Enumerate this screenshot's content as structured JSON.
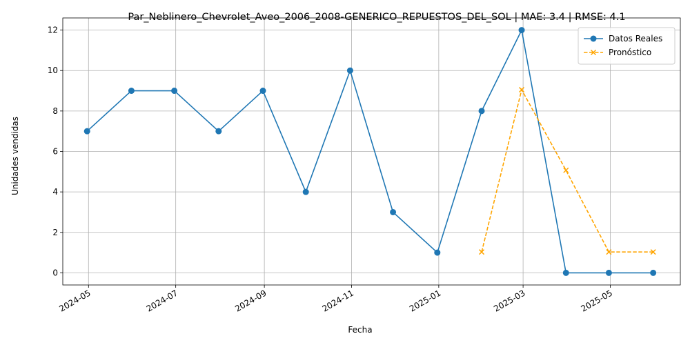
{
  "chart_data": {
    "type": "line",
    "title": "Par_Neblinero_Chevrolet_Aveo_2006_2008-GENERICO_REPUESTOS_DEL_SOL | MAE: 3.4 | RMSE: 4.1",
    "xlabel": "Fecha",
    "ylabel": "Unidades vendidas",
    "ylim": [
      -0.6,
      12.6
    ],
    "xlim": [
      "2024-04-13",
      "2025-06-19"
    ],
    "grid": true,
    "legend_position": "top-right",
    "x_ticks": [
      {
        "date": "2024-05-01",
        "label": "2024-05"
      },
      {
        "date": "2024-07-01",
        "label": "2024-07"
      },
      {
        "date": "2024-09-01",
        "label": "2024-09"
      },
      {
        "date": "2024-11-01",
        "label": "2024-11"
      },
      {
        "date": "2025-01-01",
        "label": "2025-01"
      },
      {
        "date": "2025-03-01",
        "label": "2025-03"
      },
      {
        "date": "2025-05-01",
        "label": "2025-05"
      }
    ],
    "y_ticks": [
      0,
      2,
      4,
      6,
      8,
      10,
      12
    ],
    "series": [
      {
        "name": "Datos Reales",
        "color": "#1f77b4",
        "style": "solid",
        "marker": "circle",
        "x": [
          "2024-04-30",
          "2024-05-31",
          "2024-06-30",
          "2024-07-31",
          "2024-08-31",
          "2024-09-30",
          "2024-10-31",
          "2024-11-30",
          "2024-12-31",
          "2025-01-31",
          "2025-02-28",
          "2025-03-31",
          "2025-04-30",
          "2025-05-31"
        ],
        "values": [
          7,
          9,
          9,
          7,
          9,
          4,
          10,
          3,
          1,
          8,
          12,
          0,
          0,
          0
        ]
      },
      {
        "name": "Pronóstico",
        "color": "#ffa500",
        "style": "dashed",
        "marker": "x",
        "x": [
          "2025-01-31",
          "2025-02-28",
          "2025-03-31",
          "2025-04-30",
          "2025-05-31"
        ],
        "values": [
          1.03,
          9.05,
          5.07,
          1.03,
          1.03
        ]
      }
    ]
  }
}
